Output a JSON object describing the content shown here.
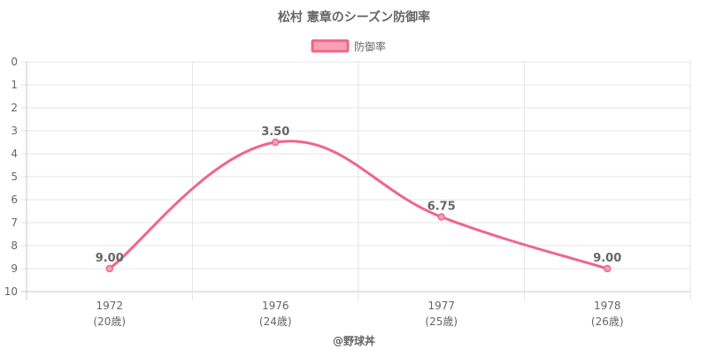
{
  "chart_data": {
    "type": "line",
    "title": "松村 憲章のシーズン防御率",
    "credit": "@野球丼",
    "x_categories": [
      {
        "year": "1972",
        "age": "(20歳)"
      },
      {
        "year": "1976",
        "age": "(24歳)"
      },
      {
        "year": "1977",
        "age": "(25歳)"
      },
      {
        "year": "1978",
        "age": "(26歳)"
      }
    ],
    "series": [
      {
        "name": "防御率",
        "values": [
          9.0,
          3.5,
          6.75,
          9.0
        ],
        "data_labels": [
          "9.00",
          "3.50",
          "6.75",
          "9.00"
        ],
        "line_color": "#f0658a",
        "fill_color": "#f7a1b7"
      }
    ],
    "y_axis": {
      "min": 0,
      "max": 10,
      "step": 1,
      "reversed": true,
      "ticks": [
        "0",
        "1",
        "2",
        "3",
        "4",
        "5",
        "6",
        "7",
        "8",
        "9",
        "10"
      ]
    },
    "grid": true,
    "legend_position": "top"
  }
}
